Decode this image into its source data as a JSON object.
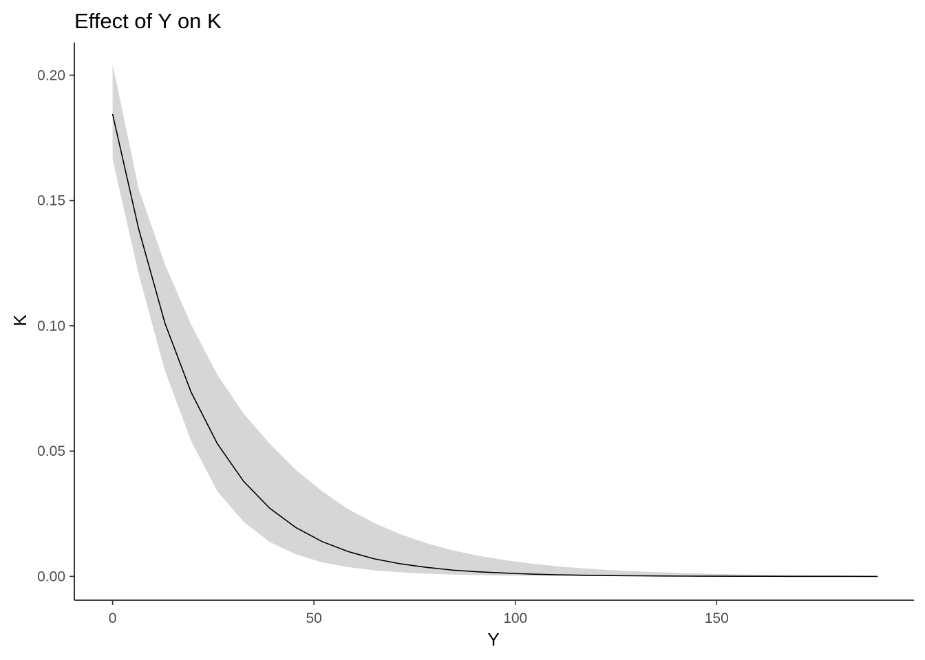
{
  "chart_data": {
    "type": "line",
    "title": "Effect of Y on K",
    "xlabel": "Y",
    "ylabel": "K",
    "xlim": [
      -9.5,
      199
    ],
    "ylim": [
      -0.0095,
      0.213
    ],
    "x_ticks": [
      0,
      50,
      100,
      150
    ],
    "x_tick_labels": [
      "0",
      "50",
      "100",
      "150"
    ],
    "y_ticks": [
      0.0,
      0.05,
      0.1,
      0.15,
      0.2
    ],
    "y_tick_labels": [
      "0.00",
      "0.05",
      "0.10",
      "0.15",
      "0.20"
    ],
    "grid": false,
    "legend": "none",
    "colors": {
      "line": "#000000",
      "ribbon": "#d6d6d6",
      "axis": "#000000",
      "tick_text": "#4d4d4d"
    },
    "series": [
      {
        "x": [
          0,
          6.5,
          13,
          19.5,
          26,
          32.5,
          39,
          45.5,
          52,
          58.5,
          65,
          71.5,
          78,
          84.5,
          91,
          97.5,
          104,
          110.5,
          117,
          123.5,
          130,
          136.5,
          143,
          149.5,
          156,
          162.5,
          169,
          175.5,
          182,
          190
        ],
        "y": [
          0.1845,
          0.1385,
          0.101,
          0.0735,
          0.053,
          0.038,
          0.0272,
          0.0195,
          0.0139,
          0.0099,
          0.007,
          0.005,
          0.0036,
          0.0025,
          0.0018,
          0.0013,
          0.0009,
          0.00065,
          0.00045,
          0.00032,
          0.00023,
          0.00016,
          0.00011,
          8e-05,
          5e-05,
          4e-05,
          3e-05,
          2e-05,
          1e-05,
          0.0
        ],
        "lower": [
          0.1665,
          0.1205,
          0.082,
          0.054,
          0.034,
          0.0218,
          0.0137,
          0.0088,
          0.0056,
          0.0037,
          0.0024,
          0.0016,
          0.0011,
          0.0007,
          0.0005,
          0.0003,
          0.0002,
          0.00014,
          0.0001,
          7e-05,
          5e-05,
          3e-05,
          2e-05,
          1e-05,
          1e-05,
          0.0,
          0.0,
          0.0,
          0.0,
          0.0
        ],
        "upper": [
          0.2045,
          0.1545,
          0.1245,
          0.1005,
          0.0805,
          0.065,
          0.053,
          0.0425,
          0.034,
          0.0268,
          0.0213,
          0.0168,
          0.0132,
          0.0104,
          0.0082,
          0.0065,
          0.0051,
          0.004,
          0.0032,
          0.0025,
          0.002,
          0.0016,
          0.0013,
          0.001,
          0.0008,
          0.0006,
          0.0005,
          0.0004,
          0.0003,
          0.0002
        ]
      }
    ]
  }
}
